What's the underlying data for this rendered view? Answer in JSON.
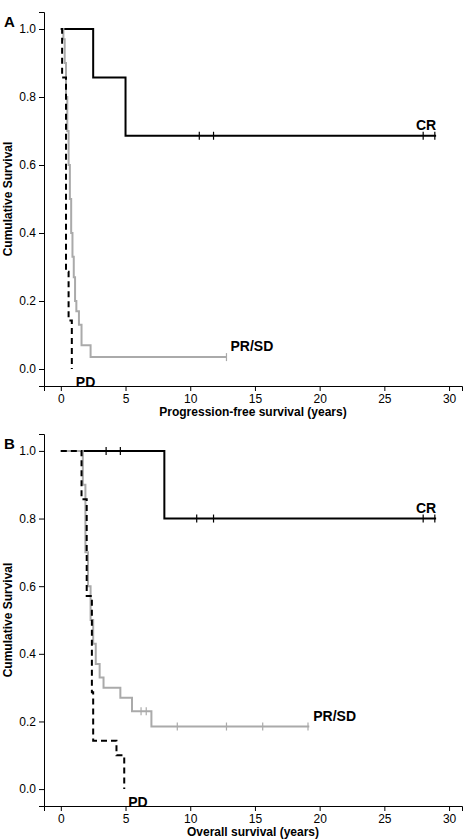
{
  "chart_data": [
    {
      "type": "line",
      "title": "A",
      "x_label": "Progression-free survival (years)",
      "y_label": "Cumulative Survival",
      "xlim": [
        -1.3,
        31
      ],
      "xticks": [
        0,
        5,
        10,
        15,
        20,
        25,
        30
      ],
      "ylim": [
        -0.05,
        1.05
      ],
      "yticks": [
        {
          "value": 0,
          "label": "0.0"
        },
        {
          "value": 0.2,
          "label": "0.2"
        },
        {
          "value": 0.4,
          "label": "0.4"
        },
        {
          "value": 0.6,
          "label": "0.6"
        },
        {
          "value": 0.8,
          "label": "0.8"
        },
        {
          "value": 1,
          "label": "1.0"
        }
      ],
      "series": [
        {
          "name": "CR",
          "color": "#000000",
          "line_style": "solid",
          "x": [
            0,
            2.5,
            5,
            29
          ],
          "values": [
            1.0,
            0.857,
            0.686,
            0.686
          ],
          "censored_x": [
            10.7,
            11.8,
            28,
            28.9
          ],
          "censored_y": [
            0.686,
            0.686,
            0.686,
            0.686
          ]
        },
        {
          "name": "PR/SD",
          "color": "#aaaaaa",
          "line_style": "solid",
          "x": [
            0,
            0.2,
            0.3,
            0.4,
            0.5,
            0.6,
            0.7,
            0.8,
            0.9,
            1.0,
            1.1,
            1.2,
            1.4,
            1.6,
            2.3,
            12.8
          ],
          "values": [
            1.0,
            0.97,
            0.9,
            0.8,
            0.7,
            0.6,
            0.5,
            0.4,
            0.33,
            0.27,
            0.2,
            0.17,
            0.13,
            0.07,
            0.035,
            0.035
          ],
          "censored_x": [
            12.8
          ],
          "censored_y": [
            0.035
          ]
        },
        {
          "name": "PD",
          "color": "#000000",
          "line_style": "dashed",
          "x": [
            0,
            0.1,
            0.4,
            0.6,
            0.85
          ],
          "values": [
            1.0,
            0.857,
            0.286,
            0.143,
            0
          ],
          "censored_x": [],
          "censored_y": []
        }
      ]
    },
    {
      "type": "line",
      "title": "B",
      "x_label": "Overall survival (years)",
      "y_label": "Cumulative Survival",
      "xlim": [
        -1.3,
        31
      ],
      "xticks": [
        0,
        5,
        10,
        15,
        20,
        25,
        30
      ],
      "ylim": [
        -0.05,
        1.05
      ],
      "yticks": [
        {
          "value": 0,
          "label": "0.0"
        },
        {
          "value": 0.2,
          "label": "0.2"
        },
        {
          "value": 0.4,
          "label": "0.4"
        },
        {
          "value": 0.6,
          "label": "0.6"
        },
        {
          "value": 0.8,
          "label": "0.8"
        },
        {
          "value": 1,
          "label": "1.0"
        }
      ],
      "series": [
        {
          "name": "CR",
          "color": "#000000",
          "line_style": "solid",
          "x": [
            0,
            8,
            29
          ],
          "values": [
            1.0,
            0.8,
            0.8
          ],
          "censored_x": [
            3.5,
            4.6,
            10.5,
            11.8,
            28,
            28.9
          ],
          "censored_y": [
            1.0,
            1.0,
            0.8,
            0.8,
            0.8,
            0.8
          ]
        },
        {
          "name": "PR/SD",
          "color": "#aaaaaa",
          "line_style": "solid",
          "x": [
            0,
            1.7,
            1.9,
            2.1,
            2.3,
            2.5,
            2.7,
            3.0,
            3.3,
            4.6,
            5.5,
            7.0,
            19.2
          ],
          "values": [
            1.0,
            0.9,
            0.7,
            0.6,
            0.5,
            0.43,
            0.37,
            0.33,
            0.3,
            0.27,
            0.23,
            0.185,
            0.185
          ],
          "censored_x": [
            6.2,
            6.6,
            9,
            12.8,
            15.6,
            19.1
          ],
          "censored_y": [
            0.23,
            0.23,
            0.185,
            0.185,
            0.185,
            0.185
          ]
        },
        {
          "name": "PD",
          "color": "#000000",
          "line_style": "dashed",
          "x": [
            0,
            1.6,
            2.0,
            2.4,
            2.5,
            4.3,
            4.9
          ],
          "values": [
            1.0,
            0.857,
            0.571,
            0.286,
            0.143,
            0.1,
            0
          ],
          "censored_x": [],
          "censored_y": []
        }
      ]
    }
  ]
}
